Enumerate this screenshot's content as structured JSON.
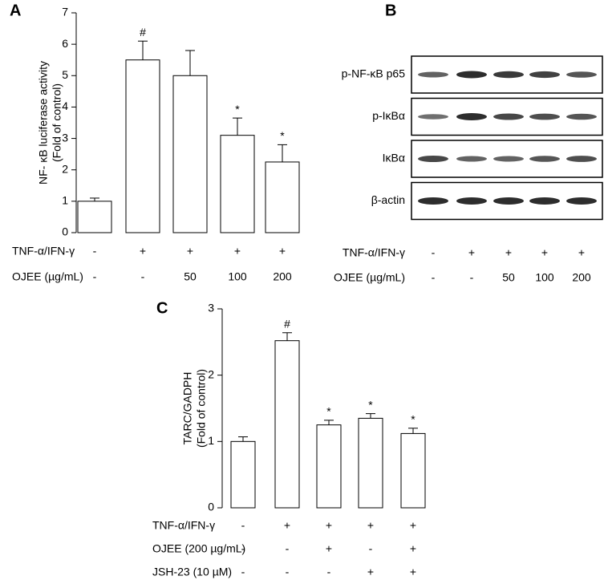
{
  "chart_data": [
    {
      "type": "bar",
      "panel": "A",
      "ylabel": [
        "NF- κB luciferase activity",
        "(Fold of control)"
      ],
      "values": [
        1.0,
        5.5,
        5.0,
        3.1,
        2.25
      ],
      "errors": [
        0.1,
        0.6,
        0.8,
        0.55,
        0.55
      ],
      "annotations": [
        null,
        "#",
        null,
        "*",
        "*"
      ],
      "ylim": [
        0,
        7
      ],
      "yticks": [
        0,
        1,
        2,
        3,
        4,
        5,
        6,
        7
      ],
      "color": "#ffffff",
      "conditions": [
        {
          "label": "TNF-α/IFN-γ",
          "values": [
            "-",
            "+",
            "+",
            "+",
            "+"
          ]
        },
        {
          "label": "OJEE (µg/mL)",
          "values": [
            "-",
            "-",
            "50",
            "100",
            "200"
          ]
        }
      ]
    },
    {
      "type": "bar",
      "panel": "C",
      "ylabel": [
        "TARC/GADPH",
        "(Fold of control)"
      ],
      "values": [
        1.0,
        2.52,
        1.25,
        1.35,
        1.12
      ],
      "errors": [
        0.07,
        0.12,
        0.07,
        0.07,
        0.08
      ],
      "annotations": [
        null,
        "#",
        "*",
        "*",
        "*"
      ],
      "ylim": [
        0,
        3
      ],
      "yticks": [
        0,
        1,
        2,
        3
      ],
      "color": "#ffffff",
      "conditions": [
        {
          "label": "TNF-α/IFN-γ",
          "values": [
            "-",
            "+",
            "+",
            "+",
            "+"
          ]
        },
        {
          "label": "OJEE (200 µg/mL)",
          "values": [
            "-",
            "-",
            "+",
            "-",
            "+"
          ]
        },
        {
          "label": "JSH-23 (10 µM)",
          "values": [
            "-",
            "-",
            "-",
            "+",
            "+"
          ]
        }
      ]
    }
  ],
  "blot": {
    "panel": "B",
    "rows": [
      "p-NF-κB p65",
      "p-IκBα",
      "IκBα",
      "β-actin"
    ],
    "conditions": [
      {
        "label": "TNF-α/IFN-γ",
        "values": [
          "-",
          "+",
          "+",
          "+",
          "+"
        ]
      },
      {
        "label": "OJEE (µg/mL)",
        "values": [
          "-",
          "-",
          "50",
          "100",
          "200"
        ]
      }
    ]
  }
}
